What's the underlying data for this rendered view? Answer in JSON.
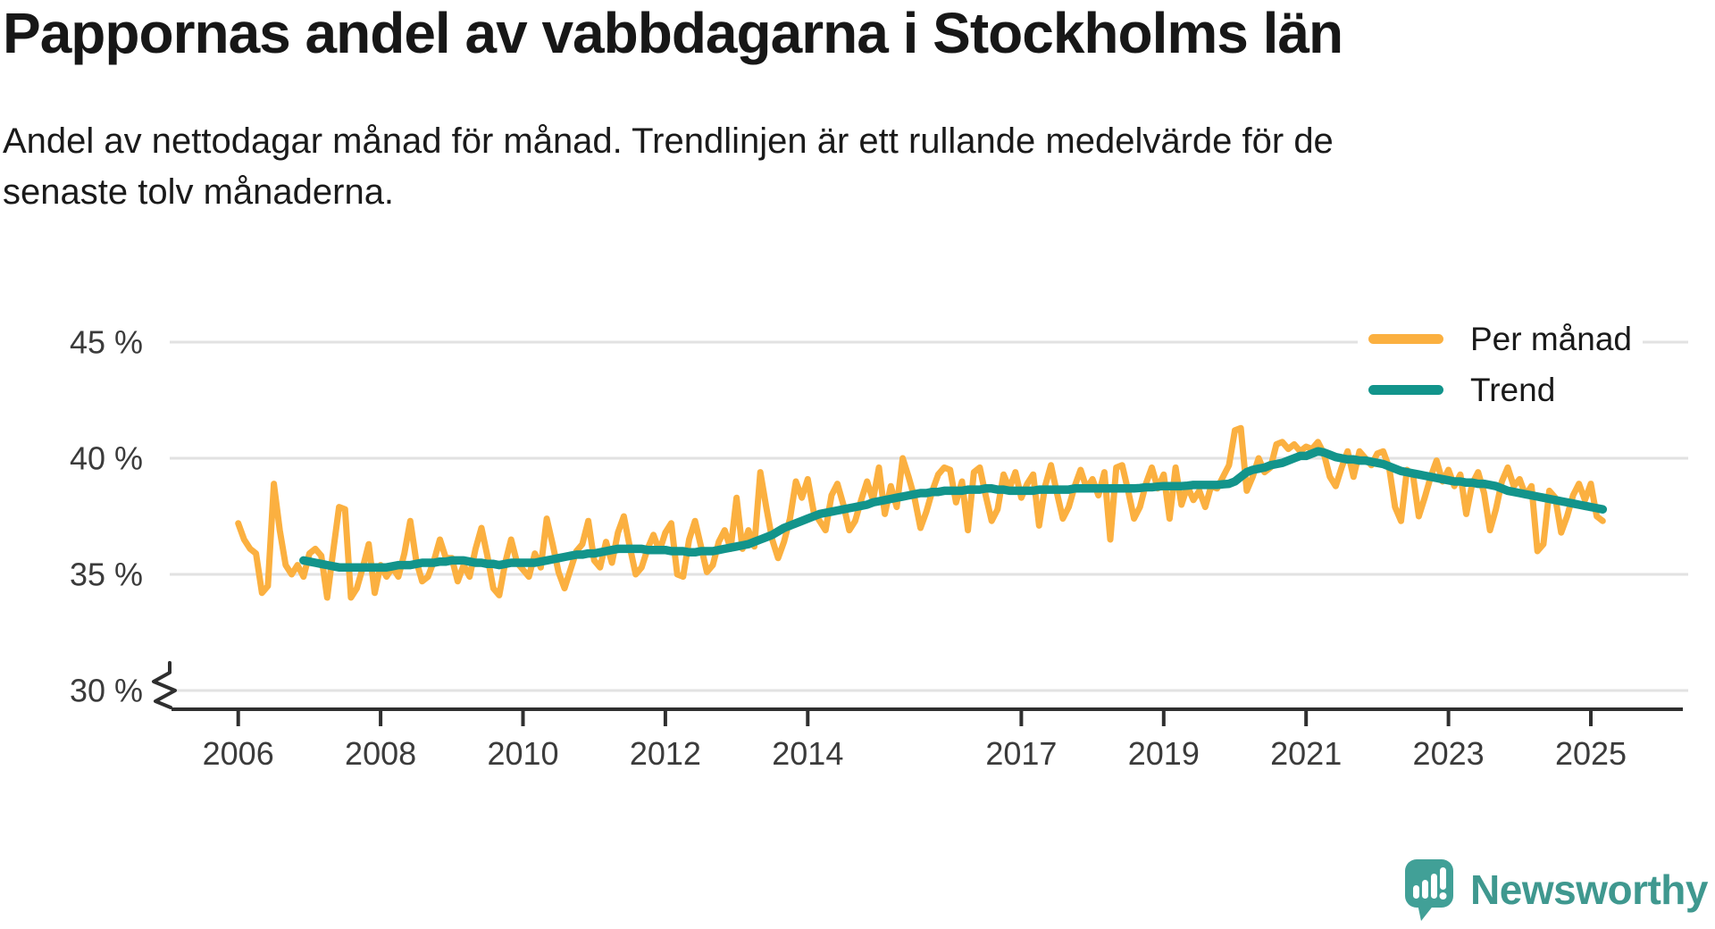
{
  "header": {
    "title": "Pappornas andel av vabbdagarna i Stockholms län",
    "subtitle_lines": [
      "Andel av nettodagar månad för månad. Trendlinjen är ett rullande medelvärde för de",
      "senaste tolv månaderna."
    ]
  },
  "branding": {
    "logo_text": "Newsworthy",
    "logo_text_color": "#3F988F",
    "icon_color": "#41A097"
  },
  "colors": {
    "monthly_line": "#FBB040",
    "trend_line": "#12948B",
    "gridline": "#E2E2E2",
    "axis": "#2F2F2F",
    "tick_label": "#3B3B3B"
  },
  "chart_data": {
    "type": "line",
    "title": "Pappornas andel av vabbdagarna i Stockholms län",
    "unit": "%",
    "grid": "horizontal",
    "legend_position": "top-right",
    "axis_break": true,
    "ylim": [
      30,
      45
    ],
    "y_ticks": [
      45,
      40,
      35,
      30
    ],
    "y_tick_labels": [
      "45 %",
      "40 %",
      "35 %",
      "30 %"
    ],
    "x_tick_labels": [
      "2006",
      "2008",
      "2010",
      "2012",
      "2014",
      "2017",
      "2019",
      "2021",
      "2023",
      "2025"
    ],
    "series": [
      {
        "name": "Per månad",
        "color": "#FBB040",
        "start_month": "2006-01",
        "values": [
          37.2,
          36.5,
          36.1,
          35.9,
          34.2,
          34.5,
          38.9,
          36.9,
          35.4,
          35.0,
          35.4,
          34.9,
          35.9,
          36.1,
          35.8,
          34.0,
          36.0,
          37.9,
          37.8,
          34.0,
          34.4,
          35.3,
          36.3,
          34.2,
          35.4,
          34.9,
          35.3,
          34.9,
          35.9,
          37.3,
          35.6,
          34.7,
          34.9,
          35.6,
          36.5,
          35.7,
          35.7,
          34.7,
          35.4,
          34.9,
          36.1,
          37.0,
          35.8,
          34.4,
          34.1,
          35.5,
          36.5,
          35.5,
          35.2,
          34.9,
          35.9,
          35.3,
          37.4,
          36.3,
          35.1,
          34.4,
          35.2,
          36.0,
          36.3,
          37.3,
          35.6,
          35.3,
          36.4,
          35.5,
          36.8,
          37.5,
          36.2,
          35.0,
          35.3,
          36.1,
          36.7,
          36.0,
          36.8,
          37.2,
          35.0,
          34.9,
          36.5,
          37.3,
          36.2,
          35.1,
          35.4,
          36.4,
          36.9,
          36.1,
          38.3,
          36.1,
          36.9,
          36.2,
          39.4,
          37.9,
          36.5,
          35.7,
          36.4,
          37.4,
          39.0,
          38.3,
          39.1,
          37.7,
          37.3,
          36.9,
          38.4,
          38.9,
          38.0,
          36.9,
          37.3,
          38.2,
          39.0,
          38.2,
          39.6,
          37.6,
          38.8,
          37.9,
          40.0,
          39.2,
          38.3,
          37.0,
          37.7,
          38.6,
          39.3,
          39.6,
          39.5,
          38.1,
          39.0,
          36.9,
          39.4,
          39.6,
          38.4,
          37.3,
          37.8,
          39.3,
          38.7,
          39.4,
          38.3,
          38.9,
          39.3,
          37.1,
          38.8,
          39.7,
          38.5,
          37.4,
          37.9,
          38.8,
          39.5,
          38.7,
          39.1,
          38.4,
          39.4,
          36.5,
          39.6,
          39.7,
          38.6,
          37.4,
          37.9,
          38.9,
          39.6,
          38.7,
          39.3,
          37.4,
          39.6,
          38.0,
          38.8,
          38.2,
          38.6,
          37.9,
          38.8,
          38.7,
          39.2,
          39.7,
          41.2,
          41.3,
          38.6,
          39.2,
          40.0,
          39.4,
          39.6,
          40.6,
          40.7,
          40.4,
          40.6,
          40.3,
          40.5,
          40.4,
          40.7,
          40.2,
          39.2,
          38.8,
          39.6,
          40.3,
          39.2,
          40.3,
          40.0,
          39.7,
          40.2,
          40.3,
          39.6,
          37.9,
          37.3,
          39.5,
          39.3,
          37.5,
          38.3,
          39.2,
          39.9,
          39.0,
          39.5,
          38.8,
          39.3,
          37.6,
          38.9,
          39.4,
          38.5,
          36.9,
          37.8,
          39.0,
          39.6,
          38.8,
          39.1,
          38.4,
          38.8,
          36.0,
          36.3,
          38.6,
          38.3,
          36.8,
          37.5,
          38.4,
          38.9,
          38.2,
          38.9,
          37.5,
          37.3
        ]
      },
      {
        "name": "Trend",
        "color": "#12948B",
        "start_month": "2006-12",
        "values": [
          35.6,
          35.55,
          35.5,
          35.45,
          35.4,
          35.35,
          35.3,
          35.3,
          35.3,
          35.3,
          35.3,
          35.3,
          35.3,
          35.3,
          35.3,
          35.35,
          35.4,
          35.4,
          35.4,
          35.45,
          35.5,
          35.5,
          35.5,
          35.55,
          35.55,
          35.6,
          35.6,
          35.6,
          35.55,
          35.5,
          35.5,
          35.45,
          35.45,
          35.4,
          35.45,
          35.5,
          35.5,
          35.5,
          35.5,
          35.5,
          35.55,
          35.6,
          35.65,
          35.7,
          35.75,
          35.8,
          35.85,
          35.85,
          35.9,
          35.9,
          35.95,
          36.0,
          36.05,
          36.1,
          36.1,
          36.1,
          36.1,
          36.1,
          36.05,
          36.05,
          36.05,
          36.05,
          36.0,
          36.0,
          36.0,
          35.95,
          35.95,
          36.0,
          36.0,
          36.0,
          36.05,
          36.1,
          36.15,
          36.2,
          36.25,
          36.3,
          36.4,
          36.5,
          36.6,
          36.7,
          36.85,
          37.0,
          37.1,
          37.2,
          37.3,
          37.4,
          37.5,
          37.6,
          37.65,
          37.7,
          37.75,
          37.8,
          37.85,
          37.9,
          37.95,
          38.0,
          38.1,
          38.15,
          38.2,
          38.25,
          38.3,
          38.35,
          38.4,
          38.45,
          38.5,
          38.5,
          38.55,
          38.55,
          38.6,
          38.6,
          38.6,
          38.6,
          38.65,
          38.65,
          38.65,
          38.7,
          38.7,
          38.65,
          38.65,
          38.6,
          38.6,
          38.6,
          38.6,
          38.6,
          38.65,
          38.65,
          38.65,
          38.65,
          38.65,
          38.65,
          38.7,
          38.7,
          38.7,
          38.7,
          38.7,
          38.7,
          38.7,
          38.7,
          38.7,
          38.7,
          38.7,
          38.72,
          38.75,
          38.75,
          38.78,
          38.8,
          38.8,
          38.8,
          38.8,
          38.82,
          38.85,
          38.85,
          38.85,
          38.85,
          38.85,
          38.88,
          38.9,
          39.0,
          39.2,
          39.4,
          39.5,
          39.55,
          39.6,
          39.7,
          39.75,
          39.8,
          39.9,
          40.0,
          40.1,
          40.1,
          40.2,
          40.3,
          40.25,
          40.15,
          40.05,
          40.0,
          39.95,
          39.95,
          39.9,
          39.9,
          39.85,
          39.8,
          39.75,
          39.65,
          39.55,
          39.45,
          39.4,
          39.35,
          39.3,
          39.25,
          39.2,
          39.15,
          39.1,
          39.05,
          39.0,
          39.0,
          38.95,
          38.95,
          38.9,
          38.9,
          38.85,
          38.8,
          38.7,
          38.6,
          38.55,
          38.5,
          38.45,
          38.4,
          38.35,
          38.3,
          38.25,
          38.2,
          38.15,
          38.1,
          38.05,
          38.0,
          37.95,
          37.9,
          37.85,
          37.8
        ]
      }
    ]
  }
}
